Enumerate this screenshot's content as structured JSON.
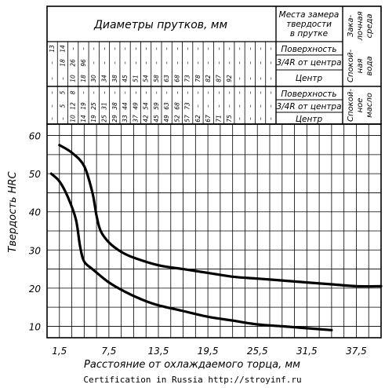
{
  "table": {
    "header_diameters": "Диаметры прутков, мм",
    "header_place": [
      "Места замера",
      "твердости",
      "в прутке"
    ],
    "header_medium": [
      "Зака-",
      "лочная",
      "среда"
    ],
    "places": [
      "Поверхность",
      "3/4R от центра",
      "Центр",
      "Поверхность",
      "3/4R от центра",
      "Центр"
    ],
    "media": [
      [
        "Спокой-",
        "ная",
        "вода"
      ],
      [
        "Спокой-",
        "ное",
        "масло"
      ]
    ],
    "rows": [
      [
        "13",
        "14",
        "–",
        "–",
        "–",
        "–",
        "–",
        "–",
        "–",
        "–",
        "–",
        "–",
        "–",
        "–",
        "–",
        "–",
        "–",
        "–",
        "–",
        "–",
        "–",
        "–"
      ],
      [
        "–",
        "18",
        "26",
        "96",
        "–",
        "–",
        "–",
        "–",
        "–",
        "–",
        "–",
        "–",
        "–",
        "–",
        "–",
        "–",
        "–",
        "–",
        "–",
        "–",
        "–",
        "–"
      ],
      [
        "–",
        "–",
        "10",
        "18",
        "30",
        "34",
        "38",
        "45",
        "51",
        "54",
        "58",
        "63",
        "68",
        "73",
        "78",
        "82",
        "87",
        "92",
        "–",
        "–",
        "–",
        "–"
      ],
      [
        "–",
        "5",
        "8",
        "–",
        "–",
        "–",
        "–",
        "–",
        "–",
        "–",
        "–",
        "–",
        "–",
        "–",
        "–",
        "–",
        "–",
        "–",
        "–",
        "–",
        "–",
        "–"
      ],
      [
        "–",
        "5",
        "12",
        "19",
        "25",
        "31",
        "38",
        "44",
        "49",
        "54",
        "59",
        "63",
        "68",
        "73",
        "–",
        "–",
        "–",
        "–",
        "–",
        "–",
        "–",
        "–"
      ],
      [
        "–",
        "–",
        "10",
        "14",
        "19",
        "25",
        "29",
        "33",
        "37",
        "42",
        "45",
        "49",
        "52",
        "57",
        "62",
        "67",
        "71",
        "75",
        "–",
        "–",
        "–",
        "–"
      ]
    ]
  },
  "chart_data": {
    "type": "line",
    "title": "",
    "xlabel": "Расстояние от охлаждаемого торца, мм",
    "ylabel": "Твердость HRC",
    "x_ticks": [
      "1,5",
      "7,5",
      "13,5",
      "19,5",
      "25,5",
      "31,5",
      "37,5"
    ],
    "y_ticks": [
      "10",
      "20",
      "30",
      "40",
      "50",
      "60"
    ],
    "xlim": [
      0,
      40.5
    ],
    "ylim": [
      7,
      63
    ],
    "grid": true,
    "series": [
      {
        "x": [
          1.5,
          3,
          4.5,
          5.5,
          6,
          6.5,
          7.5,
          9,
          10.5,
          13.5,
          16.5,
          19.5,
          22.5,
          25.5,
          28.5,
          31.5,
          34.5,
          37.5,
          40.5
        ],
        "y": [
          57.5,
          55.5,
          52,
          45,
          39,
          35,
          32,
          29.5,
          28,
          26,
          25,
          24,
          23,
          22.5,
          22,
          21.5,
          21,
          20.5,
          20.5
        ]
      },
      {
        "x": [
          0.5,
          1.5,
          2.5,
          3.5,
          4,
          4.5,
          5.5,
          7.5,
          9.5,
          11.5,
          13.5,
          16.5,
          19.5,
          22.5,
          25.5,
          28.5,
          31.5,
          34.5
        ],
        "y": [
          50,
          48,
          44,
          38,
          31,
          27,
          25,
          21.5,
          19,
          17,
          15.5,
          14,
          12.5,
          11.5,
          10.5,
          10,
          9.5,
          9
        ]
      }
    ]
  },
  "footer": "Certification in Russia http://stroyinf.ru"
}
